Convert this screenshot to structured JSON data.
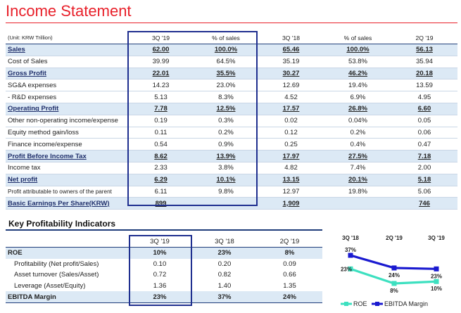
{
  "title": "Income Statement",
  "income_statement": {
    "unit_label": "(Unit: KRW Trillion)",
    "columns": [
      "3Q '19",
      "% of sales",
      "3Q '18",
      "% of sales",
      "2Q '19"
    ],
    "rows": [
      {
        "label": "Sales",
        "bold": true,
        "shade": true,
        "values": [
          "62.00",
          "100.0%",
          "65.46",
          "100.0%",
          "56.13"
        ]
      },
      {
        "label": "Cost of Sales",
        "bold": false,
        "shade": false,
        "values": [
          "39.99",
          "64.5%",
          "35.19",
          "53.8%",
          "35.94"
        ]
      },
      {
        "label": "Gross Profit",
        "bold": true,
        "shade": true,
        "values": [
          "22.01",
          "35.5%",
          "30.27",
          "46.2%",
          "20.18"
        ]
      },
      {
        "label": "SG&A expenses",
        "bold": false,
        "shade": false,
        "values": [
          "14.23",
          "23.0%",
          "12.69",
          "19.4%",
          "13.59"
        ]
      },
      {
        "label": " - R&D expenses",
        "bold": false,
        "shade": false,
        "values": [
          "5.13",
          "8.3%",
          "4.52",
          "6.9%",
          "4.95"
        ]
      },
      {
        "label": "Operating Profit",
        "bold": true,
        "shade": true,
        "values": [
          "7.78",
          "12.5%",
          "17.57",
          "26.8%",
          "6.60"
        ]
      },
      {
        "label": "Other non-operating income/expense",
        "bold": false,
        "shade": false,
        "values": [
          "0.19",
          "0.3%",
          "0.02",
          "0.04%",
          "0.05"
        ]
      },
      {
        "label": "Equity method gain/loss",
        "bold": false,
        "shade": false,
        "values": [
          "0.11",
          "0.2%",
          "0.12",
          "0.2%",
          "0.06"
        ]
      },
      {
        "label": "Finance income/expense",
        "bold": false,
        "shade": false,
        "values": [
          "0.54",
          "0.9%",
          "0.25",
          "0.4%",
          "0.47"
        ]
      },
      {
        "label": "Profit Before Income Tax",
        "bold": true,
        "shade": true,
        "values": [
          "8.62",
          "13.9%",
          "17.97",
          "27.5%",
          "7.18"
        ]
      },
      {
        "label": "Income tax",
        "bold": false,
        "shade": false,
        "values": [
          "2.33",
          "3.8%",
          "4.82",
          "7.4%",
          "2.00"
        ]
      },
      {
        "label": "Net profit",
        "bold": true,
        "shade": true,
        "values": [
          "6.29",
          "10.1%",
          "13.15",
          "20.1%",
          "5.18"
        ]
      },
      {
        "label": "Profit attributable to owners of the parent",
        "bold": false,
        "shade": false,
        "small": true,
        "values": [
          "6.11",
          "9.8%",
          "12.97",
          "19.8%",
          "5.06"
        ]
      },
      {
        "label": "Basic Earnings Per Share(KRW)",
        "bold": true,
        "shade": true,
        "values": [
          "899",
          "",
          "1,909",
          "",
          "746"
        ]
      }
    ]
  },
  "kpi": {
    "title": "Key Profitability Indicators",
    "columns": [
      "3Q '19",
      "3Q '18",
      "2Q '19"
    ],
    "rows": [
      {
        "label": "ROE",
        "bold": true,
        "shade": true,
        "sub": false,
        "values": [
          "10%",
          "23%",
          "8%"
        ]
      },
      {
        "label": "Profitability (Net profit/Sales)",
        "bold": false,
        "shade": false,
        "sub": true,
        "values": [
          "0.10",
          "0.20",
          "0.09"
        ]
      },
      {
        "label": "Asset turnover (Sales/Asset)",
        "bold": false,
        "shade": false,
        "sub": true,
        "values": [
          "0.72",
          "0.82",
          "0.66"
        ]
      },
      {
        "label": "Leverage (Asset/Equity)",
        "bold": false,
        "shade": false,
        "sub": true,
        "values": [
          "1.36",
          "1.40",
          "1.35"
        ]
      },
      {
        "label": "EBITDA Margin",
        "bold": true,
        "shade": true,
        "sub": false,
        "values": [
          "23%",
          "37%",
          "24%"
        ]
      }
    ]
  },
  "chart_data": {
    "type": "line",
    "categories": [
      "3Q '18",
      "2Q '19",
      "3Q '19"
    ],
    "series": [
      {
        "name": "ROE",
        "values": [
          23,
          8,
          10
        ],
        "labels": [
          "23%",
          "8%",
          "10%"
        ],
        "color": "#3de0c0"
      },
      {
        "name": "EBITDA Margin",
        "values": [
          37,
          24,
          23
        ],
        "labels": [
          "37%",
          "24%",
          "23%"
        ],
        "color": "#1a1ad0"
      }
    ],
    "ylim": [
      0,
      45
    ],
    "legend": "bottom"
  },
  "colors": {
    "title_red": "#e8202a",
    "navy": "#1f2f6b",
    "highlight_box": "#1f2f8f",
    "row_shade": "#dce9f5"
  }
}
